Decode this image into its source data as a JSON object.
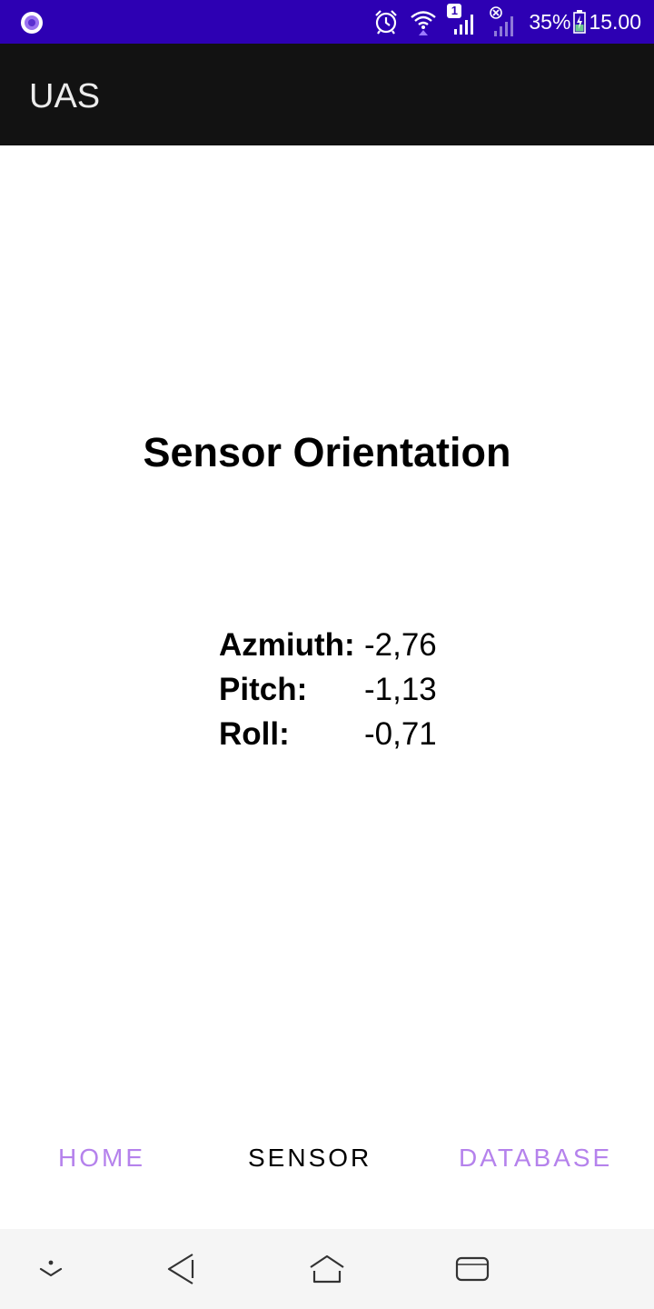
{
  "status_bar": {
    "sim_badge": "1",
    "battery_percent": "35%",
    "time": "15.00",
    "colors": {
      "background": "#2d00b3",
      "foreground": "#ffffff"
    },
    "icons": [
      "app-notification-icon",
      "alarm-icon",
      "wifi-icon",
      "signal-sim1-icon",
      "signal-sim2-nosim-icon",
      "battery-charging-icon"
    ]
  },
  "app_bar": {
    "title": "UAS",
    "background": "#121212"
  },
  "main": {
    "heading": "Sensor Orientation",
    "readings": [
      {
        "label": "Azmiuth:",
        "value": "-2,76"
      },
      {
        "label": "Pitch:",
        "value": "-1,13"
      },
      {
        "label": "Roll:",
        "value": "-0,71"
      }
    ]
  },
  "tabs": {
    "items": [
      {
        "label": "HOME",
        "selected": false
      },
      {
        "label": "SENSOR",
        "selected": true
      },
      {
        "label": "DATABASE",
        "selected": false
      }
    ],
    "colors": {
      "active": "#000000",
      "inactive": "#b582ec"
    }
  },
  "nav_bar": {
    "icons": [
      "collapse-icon",
      "back-icon",
      "home-icon",
      "recents-icon"
    ],
    "background": "#f5f5f5"
  }
}
